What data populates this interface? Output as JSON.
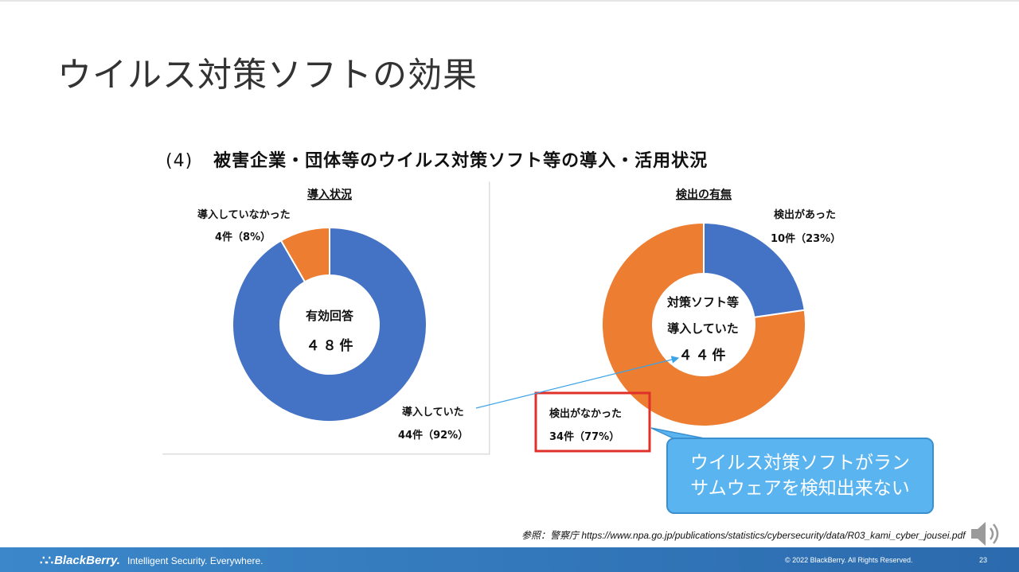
{
  "slide": {
    "title": "ウイルス対策ソフトの効果",
    "figure_number": "(4)",
    "figure_title": "被害企業・団体等のウイルス対策ソフト等の導入・活用状況"
  },
  "chart_data": [
    {
      "type": "pie",
      "variant": "donut",
      "title": "導入状況",
      "center_label_line1": "有効回答",
      "center_label_line2": "４８件",
      "slices": [
        {
          "label": "導入していた",
          "value": 44,
          "percent": 92,
          "value_text": "44件（92%）",
          "color": "#4472c4"
        },
        {
          "label": "導入していなかった",
          "value": 4,
          "percent": 8,
          "value_text": "4件（8%）",
          "color": "#ed7d31"
        }
      ]
    },
    {
      "type": "pie",
      "variant": "donut",
      "title": "検出の有無",
      "center_label_line1": "対策ソフト等",
      "center_label_line2": "導入していた",
      "center_label_line3": "４４件",
      "slices": [
        {
          "label": "検出があった",
          "value": 10,
          "percent": 23,
          "value_text": "10件（23%）",
          "color": "#4472c4"
        },
        {
          "label": "検出がなかった",
          "value": 34,
          "percent": 77,
          "value_text": "34件（77%）",
          "color": "#ed7d31"
        }
      ]
    }
  ],
  "callout": {
    "line1": "ウイルス対策ソフトがラン",
    "line2": "サムウェアを検知出来ない"
  },
  "source": "参照：警察庁 https://www.npa.go.jp/publications/statistics/cybersecurity/data/R03_kami_cyber_jousei.pdf",
  "footer": {
    "brand": "BlackBerry.",
    "tagline": "Intelligent Security. Everywhere.",
    "copyright": "© 2022 BlackBerry. All Rights Reserved.",
    "page": "23"
  },
  "colors": {
    "blue": "#4472c4",
    "orange": "#ed7d31",
    "callout": "#5ab4f0",
    "highlight_box": "#e0302a",
    "footer": "#2f74b8"
  }
}
